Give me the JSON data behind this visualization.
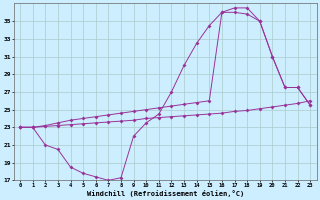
{
  "xlabel": "Windchill (Refroidissement éolien,°C)",
  "bg_color": "#cceeff",
  "grid_color": "#aacccc",
  "line_color": "#993399",
  "lineA_x": [
    0,
    1,
    2,
    3,
    4,
    5,
    6,
    7,
    8,
    9,
    10,
    11,
    12,
    13,
    14,
    15,
    16,
    17,
    18,
    19,
    20,
    21,
    22,
    23
  ],
  "lineA_y": [
    23.0,
    23.0,
    21.0,
    20.5,
    18.5,
    17.8,
    17.4,
    17.0,
    17.3,
    22.0,
    23.5,
    24.5,
    27.0,
    30.0,
    32.5,
    34.5,
    36.0,
    36.0,
    35.8,
    35.0,
    31.0,
    27.5,
    27.5,
    25.5
  ],
  "lineB_x": [
    0,
    1,
    2,
    3,
    4,
    5,
    6,
    7,
    8,
    9,
    10,
    11,
    12,
    13,
    14,
    15,
    16,
    17,
    18,
    19,
    20,
    21,
    22,
    23
  ],
  "lineB_y": [
    23.0,
    23.0,
    23.2,
    23.5,
    23.8,
    24.0,
    24.2,
    24.4,
    24.6,
    24.8,
    25.0,
    25.2,
    25.4,
    25.6,
    25.8,
    26.0,
    36.0,
    36.5,
    36.5,
    35.0,
    31.0,
    27.5,
    27.5,
    25.5
  ],
  "lineC_x": [
    0,
    1,
    2,
    3,
    4,
    5,
    6,
    7,
    8,
    9,
    10,
    11,
    12,
    13,
    14,
    15,
    16,
    17,
    18,
    19,
    20,
    21,
    22,
    23
  ],
  "lineC_y": [
    23.0,
    23.0,
    23.1,
    23.2,
    23.3,
    23.4,
    23.5,
    23.6,
    23.7,
    23.8,
    24.0,
    24.1,
    24.2,
    24.3,
    24.4,
    24.5,
    24.6,
    24.8,
    24.9,
    25.1,
    25.3,
    25.5,
    25.7,
    26.0
  ],
  "ylim": [
    17,
    37
  ],
  "yticks": [
    17,
    19,
    21,
    23,
    25,
    27,
    29,
    31,
    33,
    35
  ],
  "xlim": [
    -0.5,
    23.5
  ],
  "xticks": [
    0,
    1,
    2,
    3,
    4,
    5,
    6,
    7,
    8,
    9,
    10,
    11,
    12,
    13,
    14,
    15,
    16,
    17,
    18,
    19,
    20,
    21,
    22,
    23
  ]
}
